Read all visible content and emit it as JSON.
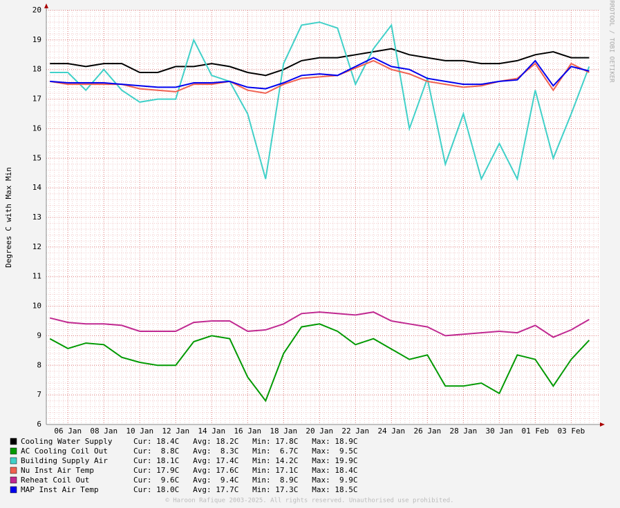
{
  "chart_data": {
    "type": "line",
    "y_label": "Degrees C with Max Min",
    "watermark": "RRDTOOL / TOBI OETIKER",
    "footer": "© Haroon Rafique 2003-2025. All rights reserved. Unauthorised use prohibited.",
    "ylim": [
      6,
      20
    ],
    "yticks": [
      6,
      7,
      8,
      9,
      10,
      11,
      12,
      13,
      14,
      15,
      16,
      17,
      18,
      19,
      20
    ],
    "xlim": [
      -1.2,
      29.6
    ],
    "xticks": [
      {
        "value": 0,
        "label": "06 Jan"
      },
      {
        "value": 2,
        "label": "08 Jan"
      },
      {
        "value": 4,
        "label": "10 Jan"
      },
      {
        "value": 6,
        "label": "12 Jan"
      },
      {
        "value": 8,
        "label": "14 Jan"
      },
      {
        "value": 10,
        "label": "16 Jan"
      },
      {
        "value": 12,
        "label": "18 Jan"
      },
      {
        "value": 14,
        "label": "20 Jan"
      },
      {
        "value": 16,
        "label": "22 Jan"
      },
      {
        "value": 18,
        "label": "24 Jan"
      },
      {
        "value": 20,
        "label": "26 Jan"
      },
      {
        "value": 22,
        "label": "28 Jan"
      },
      {
        "value": 24,
        "label": "30 Jan"
      },
      {
        "value": 26,
        "label": "01 Feb"
      },
      {
        "value": 28,
        "label": "03 Feb"
      }
    ],
    "grid": true,
    "x": [
      -1,
      0,
      1,
      2,
      3,
      4,
      5,
      6,
      7,
      8,
      9,
      10,
      11,
      12,
      13,
      14,
      15,
      16,
      17,
      18,
      19,
      20,
      21,
      22,
      23,
      24,
      25,
      26,
      27,
      28,
      29
    ],
    "series": [
      {
        "name": "Cooling Water Supply",
        "color": "#000000",
        "stats": "Cur: 18.4C   Avg: 18.2C   Min: 17.8C   Max: 18.9C",
        "values": [
          18.2,
          18.2,
          18.1,
          18.2,
          18.2,
          17.9,
          17.9,
          18.1,
          18.1,
          18.2,
          18.1,
          17.9,
          17.8,
          18.0,
          18.3,
          18.4,
          18.4,
          18.5,
          18.6,
          18.7,
          18.5,
          18.4,
          18.3,
          18.3,
          18.2,
          18.2,
          18.3,
          18.5,
          18.6,
          18.4,
          18.4
        ]
      },
      {
        "name": "AC Cooling Coil Out",
        "color": "#009900",
        "stats": "Cur:  8.8C   Avg:  8.3C   Min:  6.7C   Max:  9.5C",
        "values": [
          8.9,
          8.57,
          8.75,
          8.7,
          8.27,
          8.1,
          8.0,
          8.0,
          8.8,
          9.0,
          8.9,
          7.6,
          6.8,
          8.4,
          9.3,
          9.4,
          9.15,
          8.7,
          8.9,
          8.55,
          8.2,
          8.35,
          7.3,
          7.3,
          7.4,
          7.05,
          8.35,
          8.2,
          7.3,
          8.2,
          8.85
        ]
      },
      {
        "name": "Building Supply Air",
        "color": "#40d0c8",
        "stats": "Cur: 18.1C   Avg: 17.4C   Min: 14.2C   Max: 19.9C",
        "values": [
          17.9,
          17.9,
          17.3,
          18.0,
          17.3,
          16.9,
          17.0,
          17.0,
          19.0,
          17.8,
          17.6,
          16.5,
          14.3,
          18.2,
          19.5,
          19.6,
          19.4,
          17.5,
          18.7,
          19.5,
          16.0,
          17.7,
          14.8,
          16.5,
          14.3,
          15.5,
          14.3,
          17.3,
          15.0,
          16.5,
          18.1
        ]
      },
      {
        "name": "Nu Inst Air Temp",
        "color": "#f06050",
        "stats": "Cur: 17.9C   Avg: 17.6C   Min: 17.1C   Max: 18.4C",
        "values": [
          17.6,
          17.5,
          17.5,
          17.5,
          17.5,
          17.35,
          17.3,
          17.25,
          17.5,
          17.5,
          17.6,
          17.3,
          17.2,
          17.5,
          17.7,
          17.75,
          17.8,
          18.05,
          18.3,
          18.0,
          17.85,
          17.6,
          17.5,
          17.4,
          17.45,
          17.6,
          17.7,
          18.2,
          17.3,
          18.2,
          17.9
        ]
      },
      {
        "name": "Reheat Coil Out",
        "color": "#c02890",
        "stats": "Cur:  9.6C   Avg:  9.4C   Min:  8.9C   Max:  9.9C",
        "values": [
          9.6,
          9.45,
          9.4,
          9.4,
          9.35,
          9.15,
          9.15,
          9.15,
          9.45,
          9.5,
          9.5,
          9.15,
          9.2,
          9.4,
          9.75,
          9.8,
          9.75,
          9.7,
          9.8,
          9.5,
          9.4,
          9.3,
          9.0,
          9.05,
          9.1,
          9.15,
          9.1,
          9.35,
          8.95,
          9.2,
          9.55
        ]
      },
      {
        "name": "MAP Inst Air Temp",
        "color": "#0000ee",
        "stats": "Cur: 18.0C   Avg: 17.7C   Min: 17.3C   Max: 18.5C",
        "values": [
          17.6,
          17.55,
          17.55,
          17.55,
          17.5,
          17.45,
          17.4,
          17.4,
          17.55,
          17.55,
          17.6,
          17.4,
          17.35,
          17.55,
          17.8,
          17.85,
          17.8,
          18.1,
          18.4,
          18.1,
          18.0,
          17.7,
          17.6,
          17.5,
          17.5,
          17.6,
          17.65,
          18.3,
          17.45,
          18.1,
          17.95
        ]
      }
    ]
  }
}
